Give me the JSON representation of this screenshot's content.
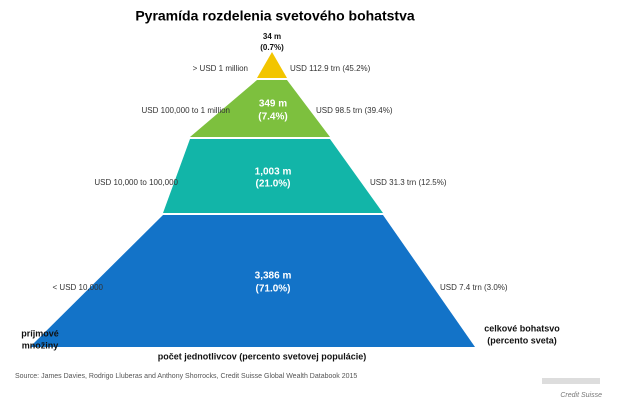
{
  "title": "Pyramída rozdelenia svetového bohatstva",
  "layers": [
    {
      "people": "34 m",
      "share": "(0.7%)",
      "range": "> USD 1 million",
      "wealth": "USD 112.9 trn (45.2%)"
    },
    {
      "people": "349 m",
      "share": "(7.4%)",
      "range": "USD 100,000 to 1 million",
      "wealth": "USD 98.5 trn (39.4%)"
    },
    {
      "people": "1,003 m",
      "share": "(21.0%)",
      "range": "USD 10,000 to 100,000",
      "wealth": "USD 31.3 trn (12.5%)"
    },
    {
      "people": "3,386 m",
      "share": "(71.0%)",
      "range": "< USD 10,000",
      "wealth": "USD 7.4 trn (3.0%)"
    }
  ],
  "left_label": [
    "príjmové",
    "množiny"
  ],
  "right_label": [
    "celkové bohatsvo",
    "(percento sveta)"
  ],
  "bottom_label": "počet jednotlivcov (percento svetovej populácie)",
  "source": "Source: James Davies, Rodrigo Lluberas and Anthony Shorrocks, Credit Suisse Global Wealth Databook 2015",
  "brand": "Credit Suisse"
}
